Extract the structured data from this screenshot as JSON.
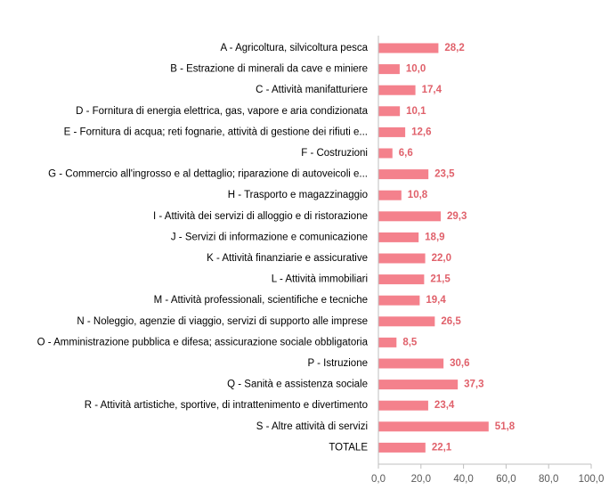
{
  "chart_data": {
    "type": "bar",
    "orientation": "horizontal",
    "title": "",
    "xlabel": "",
    "ylabel": "",
    "categories": [
      "A - Agricoltura, silvicoltura pesca",
      "B - Estrazione di minerali da cave e miniere",
      "C - Attività manifatturiere",
      "D - Fornitura di energia elettrica, gas, vapore e aria condizionata",
      "E - Fornitura di acqua; reti fognarie, attività di gestione dei rifiuti e...",
      "F - Costruzioni",
      "G - Commercio all'ingrosso e al dettaglio; riparazione di autoveicoli e...",
      "H - Trasporto e magazzinaggio",
      "I - Attività dei servizi di alloggio e di ristorazione",
      "J - Servizi di informazione e comunicazione",
      "K - Attività finanziarie e assicurative",
      "L - Attività immobiliari",
      "M - Attività professionali, scientifiche e tecniche",
      "N - Noleggio, agenzie di viaggio, servizi di supporto alle imprese",
      "O - Amministrazione pubblica e difesa; assicurazione sociale obbligatoria",
      "P - Istruzione",
      "Q - Sanità e assistenza sociale",
      "R - Attività artistiche, sportive, di intrattenimento e divertimento",
      "S - Altre attività di servizi",
      "TOTALE"
    ],
    "values": [
      28.2,
      10.0,
      17.4,
      10.1,
      12.6,
      6.6,
      23.5,
      10.8,
      29.3,
      18.9,
      22.0,
      21.5,
      19.4,
      26.5,
      8.5,
      30.6,
      37.3,
      23.4,
      51.8,
      22.1
    ],
    "value_labels": [
      "28,2",
      "10,0",
      "17,4",
      "10,1",
      "12,6",
      "6,6",
      "23,5",
      "10,8",
      "29,3",
      "18,9",
      "22,0",
      "21,5",
      "19,4",
      "26,5",
      "8,5",
      "30,6",
      "37,3",
      "23,4",
      "51,8",
      "22,1"
    ],
    "xlim": [
      0,
      100
    ],
    "xticks": [
      0,
      20,
      40,
      60,
      80,
      100
    ],
    "xtick_labels": [
      "0,0",
      "20,0",
      "40,0",
      "60,0",
      "80,0",
      "100,0"
    ],
    "grid": false,
    "legend": "none",
    "colors": {
      "bar": "#F4818C",
      "value_label": "#E0616B",
      "axis": "#BFBFBF",
      "tick_label": "#595959",
      "category_label": "#000000"
    }
  }
}
